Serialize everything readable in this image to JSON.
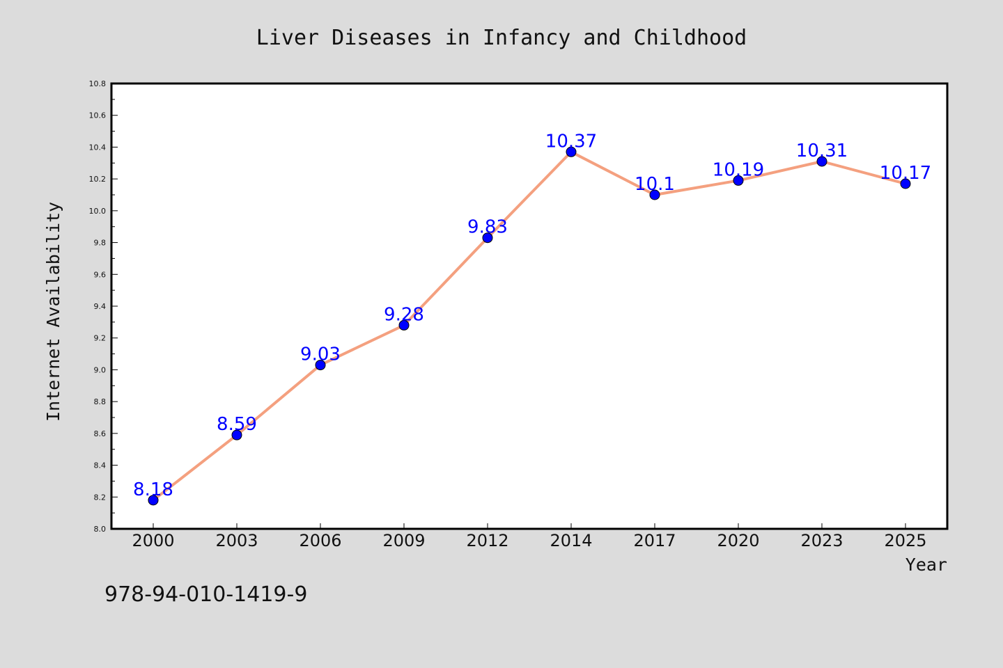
{
  "chart_data": {
    "type": "line",
    "title": "Liver Diseases in Infancy and Childhood",
    "xlabel": "Year",
    "ylabel": "Internet Availability",
    "categories": [
      "2000",
      "2003",
      "2006",
      "2009",
      "2012",
      "2014",
      "2017",
      "2020",
      "2023",
      "2025"
    ],
    "series": [
      {
        "values": [
          8.18,
          8.59,
          9.03,
          9.28,
          9.83,
          10.37,
          10.1,
          10.19,
          10.31,
          10.17
        ],
        "labels": [
          "8.18",
          "8.59",
          "9.03",
          "9.28",
          "9.83",
          "10.37",
          "10.1",
          "10.19",
          "10.31",
          "10.17"
        ]
      }
    ],
    "ylim": [
      8.0,
      10.8
    ],
    "yticks": [
      "8.0",
      "8.2",
      "8.4",
      "8.6",
      "8.8",
      "9.0",
      "9.2",
      "9.4",
      "9.6",
      "9.8",
      "10.0",
      "10.2",
      "10.4",
      "10.6",
      "10.8"
    ],
    "grid": false,
    "legend": "none",
    "colors": {
      "line": "#f4a07f",
      "marker": "#0000ff",
      "label": "#0000ff",
      "background": "#dcdcdc",
      "plot_background": "#ffffff"
    }
  },
  "footer": {
    "isbn": "978-94-010-1419-9"
  }
}
